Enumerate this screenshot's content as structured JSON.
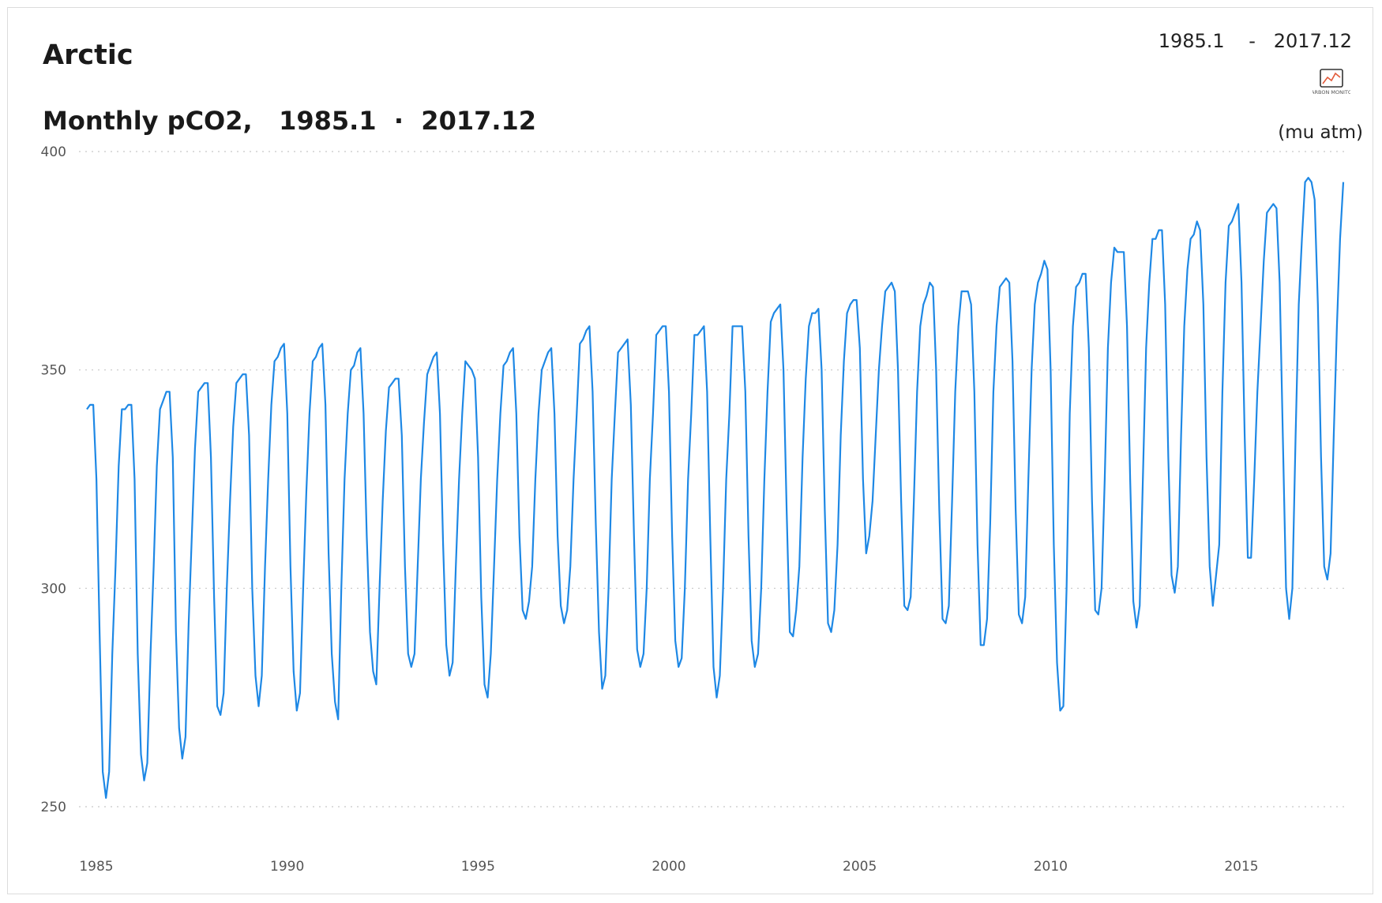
{
  "header": {
    "region": "Arctic",
    "chart_title": "Monthly pCO2,   1985.1  ·  2017.12",
    "range_display": "1985.1    -   2017.12",
    "unit": "(mu atm)",
    "logo_text": "CARBON MONITOR"
  },
  "colors": {
    "line": "#1e88e5",
    "grid": "#c8c8c8",
    "logo_line": "#e25a3a"
  },
  "chart_data": {
    "type": "line",
    "title": "Monthly pCO2,   1985.1  ·  2017.12",
    "xlabel": "",
    "ylabel": "(mu atm)",
    "xlim": [
      1985,
      2018
    ],
    "ylim": [
      250,
      400
    ],
    "yticks": [
      250,
      300,
      350,
      400
    ],
    "xticks": [
      1985,
      1990,
      1995,
      2000,
      2005,
      2010,
      2015
    ],
    "grid": "horizontal dotted",
    "series": [
      {
        "name": "",
        "start": "1985.1",
        "end": "2017.12",
        "values": [
          341,
          342,
          342,
          325,
          290,
          258,
          252,
          258,
          285,
          305,
          328,
          341,
          341,
          342,
          342,
          325,
          285,
          262,
          256,
          260,
          285,
          305,
          328,
          341,
          343,
          345,
          345,
          330,
          290,
          268,
          261,
          266,
          292,
          312,
          332,
          345,
          346,
          347,
          347,
          330,
          298,
          273,
          271,
          276,
          300,
          320,
          337,
          347,
          348,
          349,
          349,
          335,
          300,
          280,
          273,
          280,
          305,
          325,
          342,
          352,
          353,
          355,
          356,
          340,
          305,
          281,
          272,
          276,
          300,
          322,
          340,
          352,
          353,
          355,
          356,
          342,
          308,
          285,
          274,
          270,
          300,
          325,
          340,
          350,
          351,
          354,
          355,
          340,
          312,
          290,
          281,
          278,
          300,
          320,
          336,
          346,
          347,
          348,
          348,
          335,
          305,
          285,
          282,
          285,
          305,
          325,
          338,
          349,
          351,
          353,
          354,
          340,
          310,
          287,
          280,
          283,
          305,
          325,
          340,
          352,
          351,
          350,
          348,
          330,
          298,
          278,
          275,
          285,
          305,
          325,
          340,
          351,
          352,
          354,
          355,
          340,
          312,
          295,
          293,
          297,
          305,
          325,
          340,
          350,
          352,
          354,
          355,
          340,
          312,
          296,
          292,
          295,
          305,
          325,
          340,
          356,
          357,
          359,
          360,
          345,
          315,
          290,
          277,
          280,
          300,
          325,
          340,
          354,
          355,
          356,
          357,
          342,
          312,
          286,
          282,
          285,
          300,
          325,
          340,
          358,
          359,
          360,
          360,
          345,
          312,
          288,
          282,
          284,
          300,
          325,
          340,
          358,
          358,
          359,
          360,
          345,
          312,
          282,
          275,
          280,
          300,
          325,
          340,
          360,
          360,
          360,
          360,
          345,
          312,
          288,
          282,
          285,
          300,
          325,
          345,
          361,
          363,
          364,
          365,
          350,
          318,
          290,
          289,
          295,
          305,
          330,
          348,
          360,
          363,
          363,
          364,
          350,
          318,
          292,
          290,
          295,
          310,
          335,
          352,
          363,
          365,
          366,
          366,
          355,
          325,
          308,
          312,
          320,
          335,
          350,
          360,
          368,
          369,
          370,
          368,
          350,
          320,
          296,
          295,
          298,
          320,
          345,
          360,
          365,
          367,
          370,
          369,
          350,
          318,
          293,
          292,
          296,
          320,
          345,
          360,
          368,
          368,
          368,
          365,
          345,
          310,
          287,
          287,
          293,
          315,
          345,
          360,
          369,
          370,
          371,
          370,
          352,
          318,
          294,
          292,
          298,
          325,
          350,
          365,
          370,
          372,
          375,
          373,
          350,
          310,
          283,
          272,
          273,
          300,
          340,
          360,
          369,
          370,
          372,
          372,
          355,
          320,
          295,
          294,
          300,
          325,
          355,
          370,
          378,
          377,
          377,
          377,
          360,
          325,
          297,
          291,
          296,
          325,
          355,
          370,
          380,
          380,
          382,
          382,
          365,
          330,
          303,
          299,
          305,
          335,
          360,
          373,
          380,
          381,
          384,
          382,
          365,
          330,
          305,
          296,
          303,
          310,
          345,
          370,
          383,
          384,
          386,
          388,
          370,
          335,
          307,
          307,
          325,
          345,
          360,
          375,
          386,
          387,
          388,
          387,
          370,
          335,
          300,
          293,
          300,
          335,
          365,
          380,
          393,
          394,
          393,
          389,
          365,
          330,
          305,
          302,
          308,
          335,
          360,
          380,
          393
        ]
      }
    ]
  }
}
